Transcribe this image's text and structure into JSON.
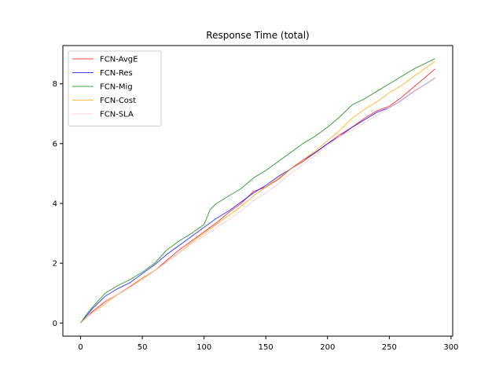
{
  "chart_data": {
    "type": "line",
    "title": "Response Time (total)",
    "xlabel": "",
    "ylabel": "",
    "xlim": [
      -14.35,
      301.35
    ],
    "ylim": [
      -0.44,
      9.28
    ],
    "xticks": [
      0,
      50,
      100,
      150,
      200,
      250,
      300
    ],
    "yticks": [
      0,
      2,
      4,
      6,
      8
    ],
    "grid": false,
    "legend_position": "upper-left",
    "series": [
      {
        "name": "FCN-AvgE",
        "color": "#ff0000",
        "x": [
          0,
          5,
          10,
          20,
          30,
          40,
          50,
          60,
          70,
          80,
          90,
          100,
          110,
          120,
          130,
          140,
          150,
          160,
          170,
          180,
          190,
          200,
          210,
          220,
          230,
          240,
          250,
          260,
          270,
          280,
          287
        ],
        "y": [
          0.0,
          0.2,
          0.4,
          0.72,
          0.95,
          1.22,
          1.5,
          1.75,
          2.1,
          2.45,
          2.75,
          3.05,
          3.35,
          3.7,
          4.0,
          4.4,
          4.55,
          4.8,
          5.15,
          5.4,
          5.7,
          6.0,
          6.3,
          6.55,
          6.85,
          7.1,
          7.25,
          7.55,
          7.9,
          8.25,
          8.5
        ]
      },
      {
        "name": "FCN-Res",
        "color": "#0000ff",
        "x": [
          0,
          5,
          10,
          20,
          30,
          40,
          50,
          60,
          70,
          80,
          90,
          100,
          110,
          120,
          130,
          140,
          150,
          160,
          170,
          180,
          190,
          200,
          210,
          220,
          230,
          240,
          250,
          260,
          270,
          280,
          287
        ],
        "y": [
          0.0,
          0.25,
          0.5,
          0.9,
          1.15,
          1.35,
          1.65,
          1.95,
          2.3,
          2.6,
          2.9,
          3.2,
          3.5,
          3.75,
          4.05,
          4.35,
          4.6,
          4.9,
          5.15,
          5.45,
          5.7,
          6.0,
          6.25,
          6.55,
          6.8,
          7.05,
          7.2,
          7.45,
          7.75,
          8.0,
          8.2
        ]
      },
      {
        "name": "FCN-Mig",
        "color": "#008000",
        "x": [
          0,
          5,
          10,
          20,
          30,
          40,
          50,
          60,
          70,
          80,
          90,
          100,
          105,
          110,
          120,
          130,
          140,
          150,
          160,
          170,
          180,
          190,
          200,
          210,
          220,
          230,
          240,
          250,
          260,
          270,
          280,
          287
        ],
        "y": [
          0.0,
          0.3,
          0.55,
          1.0,
          1.25,
          1.45,
          1.7,
          2.0,
          2.45,
          2.75,
          3.0,
          3.3,
          3.8,
          4.0,
          4.25,
          4.5,
          4.85,
          5.1,
          5.4,
          5.7,
          6.0,
          6.25,
          6.55,
          6.9,
          7.3,
          7.5,
          7.75,
          8.0,
          8.25,
          8.5,
          8.7,
          8.85
        ]
      },
      {
        "name": "FCN-Cost",
        "color": "#ffa500",
        "x": [
          0,
          5,
          10,
          20,
          30,
          40,
          50,
          60,
          70,
          80,
          90,
          100,
          110,
          120,
          130,
          140,
          150,
          160,
          170,
          180,
          190,
          200,
          210,
          220,
          230,
          240,
          250,
          260,
          270,
          280,
          287
        ],
        "y": [
          0.0,
          0.2,
          0.35,
          0.65,
          0.95,
          1.2,
          1.5,
          1.75,
          2.05,
          2.35,
          2.7,
          3.0,
          3.3,
          3.6,
          3.9,
          4.25,
          4.55,
          4.85,
          5.15,
          5.45,
          5.75,
          6.1,
          6.45,
          6.85,
          7.15,
          7.4,
          7.7,
          7.95,
          8.25,
          8.55,
          8.75
        ]
      },
      {
        "name": "FCN-SLA",
        "color": "#ffc0cb",
        "x": [
          0,
          5,
          10,
          20,
          30,
          40,
          50,
          60,
          70,
          80,
          90,
          100,
          110,
          120,
          130,
          140,
          150,
          160,
          170,
          180,
          190,
          200,
          210,
          220,
          230,
          240,
          250,
          260,
          270,
          280,
          287
        ],
        "y": [
          0.0,
          0.2,
          0.35,
          0.7,
          0.95,
          1.2,
          1.45,
          1.75,
          2.05,
          2.35,
          2.65,
          2.9,
          3.2,
          3.45,
          3.75,
          4.1,
          4.35,
          4.65,
          5.0,
          5.3,
          5.6,
          5.95,
          6.25,
          6.45,
          6.7,
          6.95,
          7.2,
          7.45,
          7.75,
          8.0,
          8.2
        ]
      }
    ]
  }
}
